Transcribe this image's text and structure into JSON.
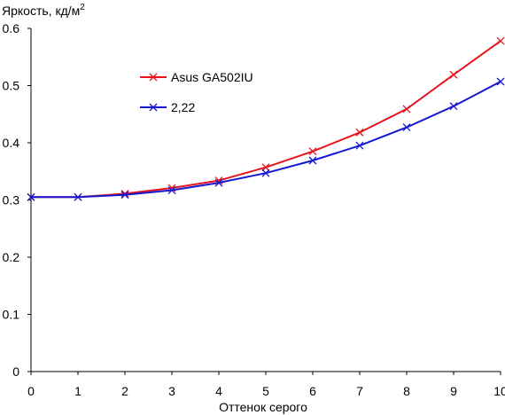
{
  "chart_data": {
    "type": "line",
    "ylabel": "Яркость, кд/м",
    "ylabel_sup": "2",
    "xlabel": "Оттенок серого",
    "x": [
      0,
      1,
      2,
      3,
      4,
      5,
      6,
      7,
      8,
      9,
      10
    ],
    "xlim": [
      0,
      10
    ],
    "ylim": [
      0,
      0.6
    ],
    "xticks": [
      "0",
      "1",
      "2",
      "3",
      "4",
      "5",
      "6",
      "7",
      "8",
      "9",
      "10"
    ],
    "yticks": [
      "0",
      "0.1",
      "0.2",
      "0.3",
      "0.4",
      "0.5",
      "0.6"
    ],
    "grid": false,
    "legend_position": "top-center",
    "series": [
      {
        "name": "Asus GA502IU",
        "color": "#e8141c",
        "marker": "x",
        "values": [
          0.305,
          0.305,
          0.311,
          0.321,
          0.334,
          0.357,
          0.385,
          0.418,
          0.459,
          0.519,
          0.578
        ]
      },
      {
        "name": "2,22",
        "color": "#1418d2",
        "marker": "x",
        "values": [
          0.305,
          0.305,
          0.309,
          0.317,
          0.33,
          0.347,
          0.369,
          0.395,
          0.427,
          0.464,
          0.507
        ]
      }
    ]
  }
}
